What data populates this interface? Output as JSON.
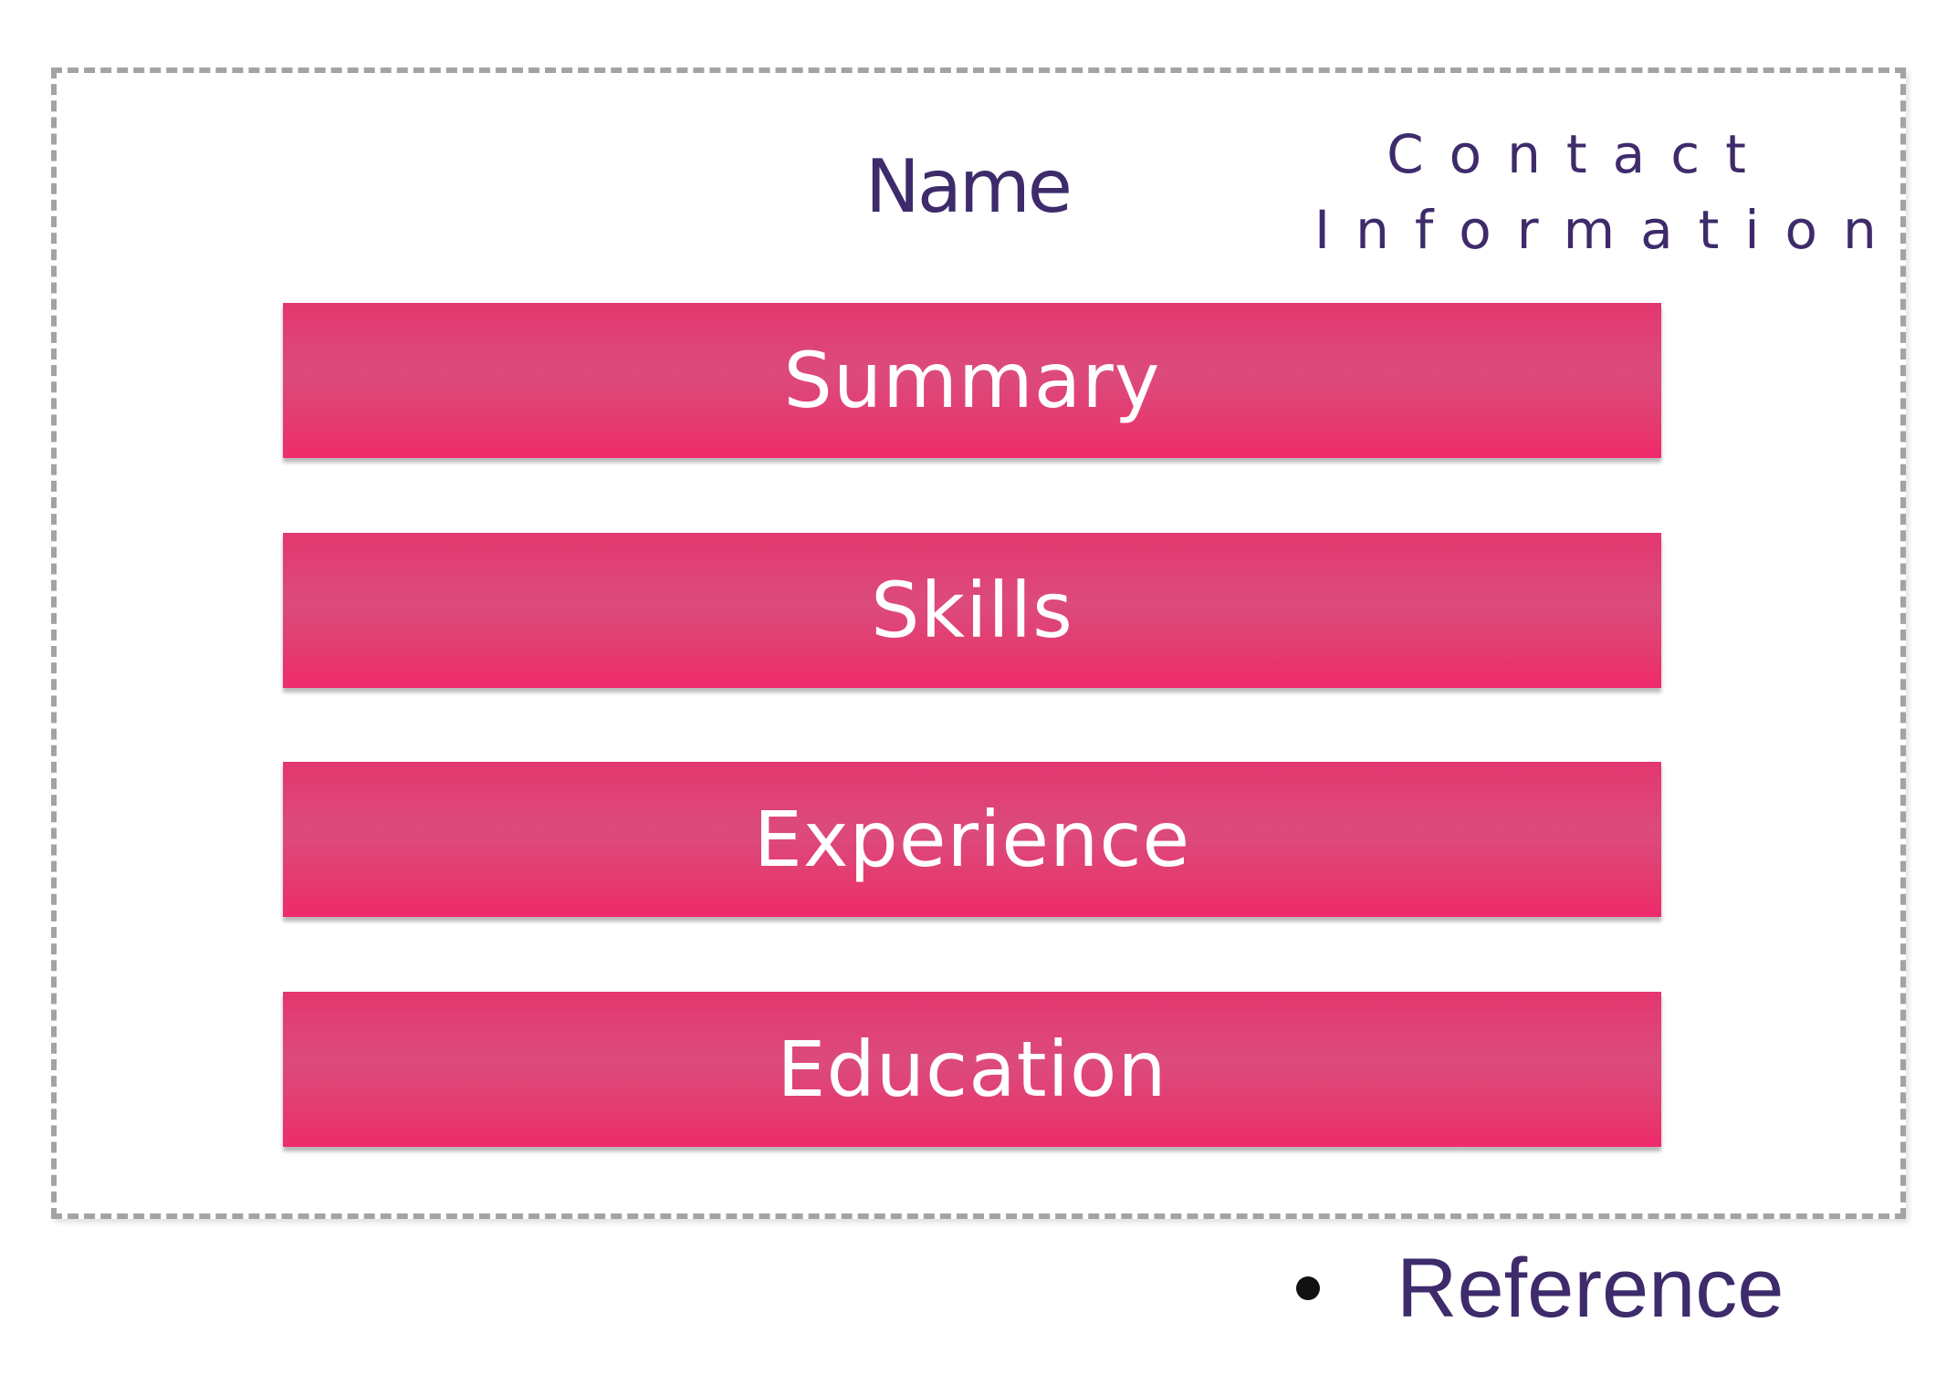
{
  "header": {
    "name": "Name",
    "contact": "Contact\nInformation"
  },
  "sections": [
    {
      "label": "Summary"
    },
    {
      "label": "Skills"
    },
    {
      "label": "Experience"
    },
    {
      "label": "Education"
    }
  ],
  "footer": {
    "reference": "Reference"
  },
  "colors": {
    "bar": "#e3376f",
    "text_dark": "#3d2b6b",
    "border": "#a3a3a3"
  }
}
